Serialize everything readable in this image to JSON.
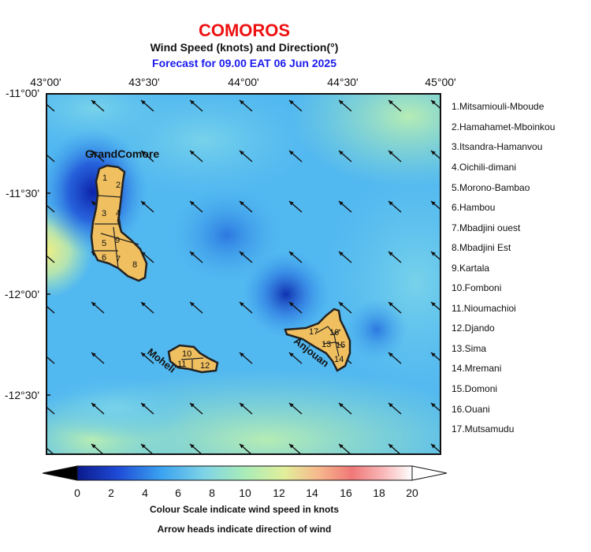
{
  "header": {
    "title": "COMOROS",
    "subtitle": "Wind Speed (knots) and Direction(°)",
    "forecast": "Forecast for  09.00 EAT 06 Jun 2025"
  },
  "axes": {
    "lon_labels": [
      "43°00'",
      "43°30'",
      "44°00'",
      "44°30'",
      "45°00'"
    ],
    "lat_labels": [
      "-11°00'",
      "-11°30'",
      "-12°00'",
      "-12°30'"
    ]
  },
  "islands": [
    {
      "name": "GrandComore",
      "label": "GrandComore"
    },
    {
      "name": "Moheli",
      "label": "Moheli"
    },
    {
      "name": "Anjouan",
      "label": "Anjouan"
    }
  ],
  "district_markers": [
    "1",
    "2",
    "3",
    "4",
    "5",
    "6",
    "7",
    "8",
    "9",
    "10",
    "11",
    "12",
    "13",
    "14",
    "15",
    "16",
    "17"
  ],
  "districts": [
    "1.Mitsamiouli-Mboude",
    "2.Hamahamet-Mboinkou",
    "3.Itsandra-Hamanvou",
    "4.Oichili-dimani",
    "5.Morono-Bambao",
    "6.Hambou",
    "7.Mbadjini ouest",
    "8.Mbadjini Est",
    "9.Kartala",
    "10.Fomboni",
    "11.Nioumachioi",
    "12.Djando",
    "13.Sima",
    "14.Mremani",
    "15.Domoni",
    "16.Ouani",
    "17.Mutsamudu"
  ],
  "colorbar": {
    "ticks": [
      "0",
      "2",
      "4",
      "6",
      "8",
      "10",
      "12",
      "14",
      "16",
      "18",
      "20"
    ],
    "min": 0,
    "max": 20,
    "colors": [
      "#0b1a8c",
      "#1f4ad6",
      "#3aa2f0",
      "#7fd4e6",
      "#a9ecb8",
      "#e2ee9a",
      "#f6b88c",
      "#f07878",
      "#f9bcbc",
      "#ffffff"
    ]
  },
  "notes": {
    "scale": "Colour Scale indicate wind speed in knots",
    "arrows": "Arrow heads indicate direction of wind"
  },
  "wind": {
    "direction": "from south-east (arrows pointing north-west)",
    "lon_range": [
      43.0,
      45.0
    ],
    "lat_range": [
      -11.0,
      -12.8
    ]
  }
}
